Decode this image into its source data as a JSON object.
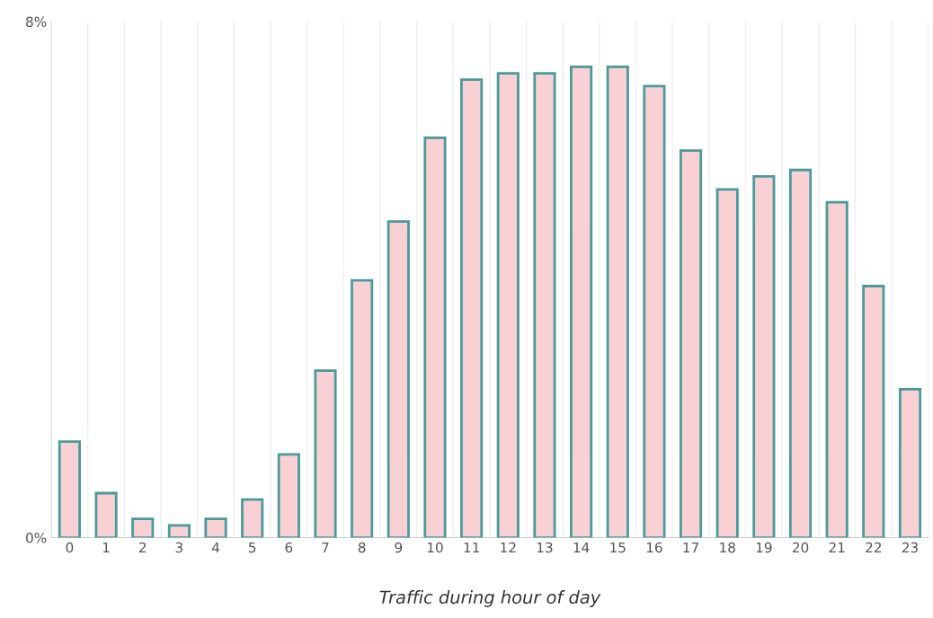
{
  "chart_data": {
    "type": "bar",
    "xlabel": "Traffic during hour of day",
    "categories": [
      "0",
      "1",
      "2",
      "3",
      "4",
      "5",
      "6",
      "7",
      "8",
      "9",
      "10",
      "11",
      "12",
      "13",
      "14",
      "15",
      "16",
      "17",
      "18",
      "19",
      "20",
      "21",
      "22",
      "23"
    ],
    "values": [
      1.49,
      0.69,
      0.29,
      0.19,
      0.29,
      0.59,
      1.29,
      2.59,
      3.99,
      4.9,
      6.2,
      7.1,
      7.2,
      7.2,
      7.3,
      7.3,
      7.0,
      6.0,
      5.4,
      5.6,
      5.7,
      5.2,
      3.9,
      2.3
    ],
    "color": "#f9d0d3",
    "ylim": [
      0,
      8
    ],
    "yticks": [
      {
        "value": 0,
        "label": "0%"
      },
      {
        "value": 8,
        "label": "8%"
      }
    ],
    "grid": "x",
    "legend": false
  }
}
